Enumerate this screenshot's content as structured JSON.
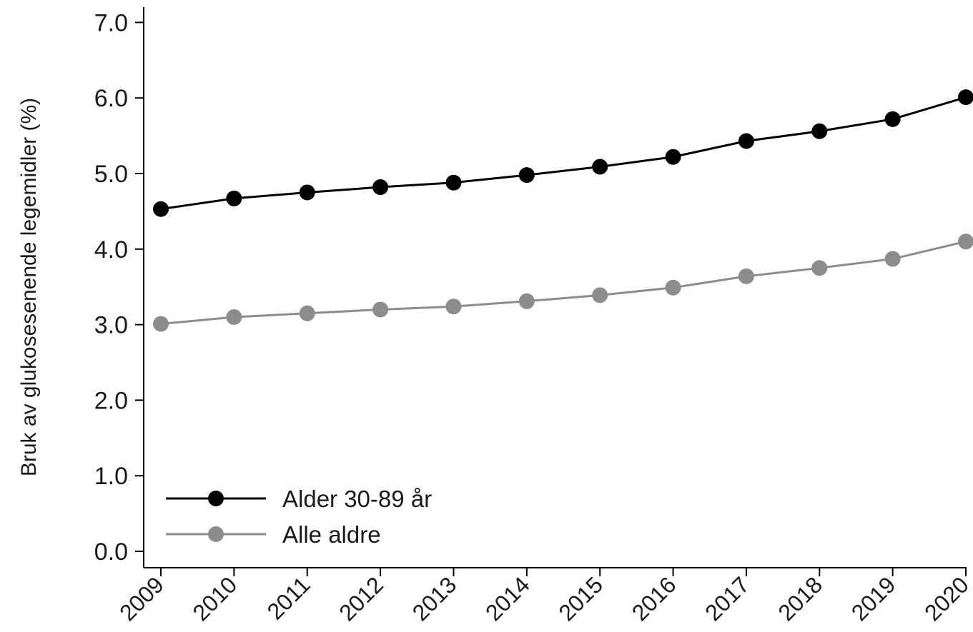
{
  "chart_data": {
    "type": "line",
    "title": "",
    "xlabel": "",
    "ylabel": "Bruk av glukosesenende legemidler (%)",
    "categories": [
      "2009",
      "2010",
      "2011",
      "2012",
      "2013",
      "2014",
      "2015",
      "2016",
      "2017",
      "2018",
      "2019",
      "2020"
    ],
    "ylim": [
      0,
      7
    ],
    "yticks": [
      "0.0",
      "1.0",
      "2.0",
      "3.0",
      "4.0",
      "5.0",
      "6.0",
      "7.0"
    ],
    "grid": false,
    "legend_position": "bottom-left",
    "series": [
      {
        "name": "Alder 30-89 år",
        "color": "#000000",
        "values": [
          4.53,
          4.67,
          4.75,
          4.82,
          4.88,
          4.98,
          5.09,
          5.22,
          5.43,
          5.56,
          5.72,
          6.01
        ]
      },
      {
        "name": "Alle aldre",
        "color": "#8c8c8c",
        "values": [
          3.01,
          3.1,
          3.15,
          3.2,
          3.24,
          3.31,
          3.39,
          3.49,
          3.64,
          3.75,
          3.87,
          4.1
        ]
      }
    ]
  }
}
